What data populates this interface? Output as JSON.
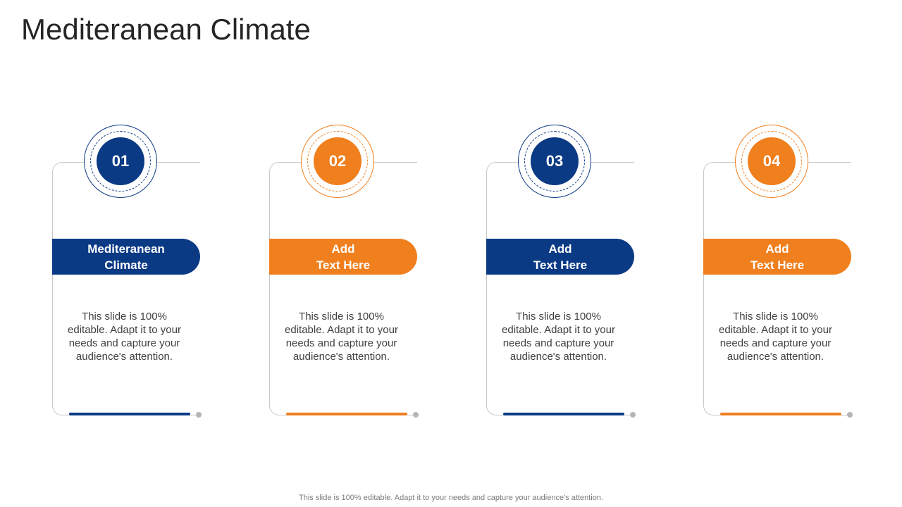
{
  "title": "Mediteranean Climate",
  "colors": {
    "navy": "#0b3a85",
    "orange": "#f07f1e"
  },
  "cards": [
    {
      "number": "01",
      "label": "Mediteranean\nClimate",
      "description": "This slide is 100% editable. Adapt it to your needs and capture your audience's attention.",
      "color": "#0b3a85"
    },
    {
      "number": "02",
      "label": "Add\nText Here",
      "description": "This slide is 100% editable. Adapt it to your needs and capture your audience's attention.",
      "color": "#f07f1e"
    },
    {
      "number": "03",
      "label": "Add\nText Here",
      "description": "This slide is 100% editable. Adapt it to your needs and capture your audience's attention.",
      "color": "#0b3a85"
    },
    {
      "number": "04",
      "label": "Add\nText Here",
      "description": "This slide is 100% editable. Adapt it to your needs and capture your audience's attention.",
      "color": "#f07f1e"
    }
  ],
  "footer": "This slide is 100% editable. Adapt it to your needs and capture your audience's attention."
}
